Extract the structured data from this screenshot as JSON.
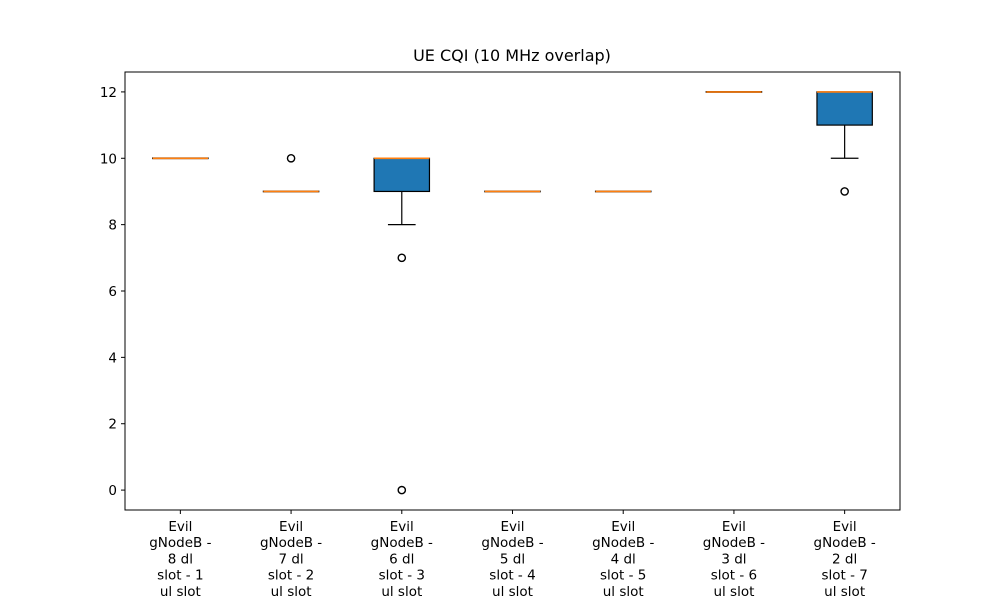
{
  "chart_data": {
    "type": "boxplot",
    "title": "UE CQI (10 MHz overlap)",
    "xlabel": "",
    "ylabel": "",
    "ylim": [
      -0.6,
      12.6
    ],
    "yticks": [
      0,
      2,
      4,
      6,
      8,
      10,
      12
    ],
    "grid": false,
    "colors": {
      "box_fill": "#1f77b4",
      "median": "#ff7f0e",
      "line": "#000000"
    },
    "categories": [
      [
        "Evil",
        "gNodeB -",
        "8 dl",
        "slot - 1",
        "ul slot"
      ],
      [
        "Evil",
        "gNodeB -",
        "7 dl",
        "slot - 2",
        "ul slot"
      ],
      [
        "Evil",
        "gNodeB -",
        "6 dl",
        "slot - 3",
        "ul slot"
      ],
      [
        "Evil",
        "gNodeB -",
        "5 dl",
        "slot - 4",
        "ul slot"
      ],
      [
        "Evil",
        "gNodeB -",
        "4 dl",
        "slot - 5",
        "ul slot"
      ],
      [
        "Evil",
        "gNodeB -",
        "3 dl",
        "slot - 6",
        "ul slot"
      ],
      [
        "Evil",
        "gNodeB -",
        "2 dl",
        "slot - 7",
        "ul slot"
      ]
    ],
    "boxes": [
      {
        "q1": 10,
        "median": 10,
        "q3": 10,
        "whisker_low": 10,
        "whisker_high": 10,
        "outliers": []
      },
      {
        "q1": 9,
        "median": 9,
        "q3": 9,
        "whisker_low": 9,
        "whisker_high": 9,
        "outliers": [
          10
        ]
      },
      {
        "q1": 9,
        "median": 10,
        "q3": 10,
        "whisker_low": 8,
        "whisker_high": 10,
        "outliers": [
          7,
          0
        ]
      },
      {
        "q1": 9,
        "median": 9,
        "q3": 9,
        "whisker_low": 9,
        "whisker_high": 9,
        "outliers": []
      },
      {
        "q1": 9,
        "median": 9,
        "q3": 9,
        "whisker_low": 9,
        "whisker_high": 9,
        "outliers": []
      },
      {
        "q1": 12,
        "median": 12,
        "q3": 12,
        "whisker_low": 12,
        "whisker_high": 12,
        "outliers": []
      },
      {
        "q1": 11,
        "median": 12,
        "q3": 12,
        "whisker_low": 10,
        "whisker_high": 12,
        "outliers": [
          9
        ]
      }
    ]
  }
}
